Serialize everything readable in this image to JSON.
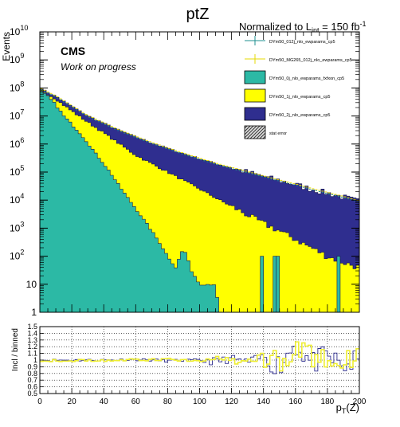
{
  "title": "ptZ",
  "lumi_label": "Normalized to L",
  "lumi_sub": "int",
  "lumi_value": " = 150 fb",
  "lumi_sup": "-1",
  "cms_label": "CMS",
  "cms_sub": "Work on progress",
  "colors": {
    "teal": "#2cb9a5",
    "yellow": "#ffff00",
    "navy": "#2f2e8f",
    "tealmark": "#1f8f8f",
    "yellowmark": "#e6d800",
    "ratioyellow": "#eeee33"
  },
  "chart_data": [
    {
      "type": "area",
      "title": "ptZ",
      "xlabel": "",
      "ylabel": "Events",
      "ylog": true,
      "xlim": [
        0,
        200
      ],
      "ylim": [
        1,
        10000000000
      ],
      "ytick_labels": [
        "1",
        "10",
        "10",
        "10",
        "10",
        "10",
        "10",
        "10",
        "10",
        "10",
        "10"
      ],
      "ytick_exps": [
        "",
        "",
        "2",
        "3",
        "4",
        "5",
        "6",
        "7",
        "8",
        "9",
        "10"
      ],
      "legend_position": "top-right",
      "legend": [
        {
          "name": "DYm50_012j_nlo_ewparams_cp5",
          "style": "marker-teal"
        },
        {
          "name": "DYm50_MG265_012j_nlo_ewparams_cp5",
          "style": "marker-yellow"
        },
        {
          "name": "DYm50_0j_nlo_ewparams_fxfxon_cp5",
          "style": "fill-teal"
        },
        {
          "name": "DYm50_1j_nlo_ewparams_cp5",
          "style": "fill-yellow"
        },
        {
          "name": "DYm50_2j_nlo_ewparams_cp5",
          "style": "fill-navy"
        },
        {
          "name": "stat error",
          "style": "hatch"
        }
      ],
      "series": [
        {
          "name": "DYm50_0j_nlo_ewparams_fxfxon_cp5",
          "y_at_x": [
            [
              0,
              80000000
            ],
            [
              5,
              50000000
            ],
            [
              10,
              25000000
            ],
            [
              15,
              10000000
            ],
            [
              20,
              5000000
            ],
            [
              25,
              2500000
            ],
            [
              30,
              1100000
            ],
            [
              35,
              450000
            ],
            [
              40,
              200000
            ],
            [
              45,
              80000
            ],
            [
              50,
              30000
            ],
            [
              55,
              12000
            ],
            [
              60,
              5000
            ],
            [
              65,
              2000
            ],
            [
              70,
              800
            ],
            [
              75,
              300
            ],
            [
              80,
              100
            ],
            [
              85,
              40
            ],
            [
              90,
              200
            ],
            [
              95,
              30
            ],
            [
              100,
              10
            ],
            [
              105,
              10
            ],
            [
              110,
              10
            ],
            [
              112,
              1
            ]
          ]
        },
        {
          "name": "DYm50_1j_nlo_ewparams_cp5",
          "y_at_x": [
            [
              0,
              90000000
            ],
            [
              10,
              40000000
            ],
            [
              20,
              15000000
            ],
            [
              30,
              6000000
            ],
            [
              40,
              2500000
            ],
            [
              50,
              1000000
            ],
            [
              60,
              400000
            ],
            [
              70,
              200000
            ],
            [
              80,
              100000
            ],
            [
              90,
              50000
            ],
            [
              100,
              25000
            ],
            [
              110,
              12000
            ],
            [
              120,
              6000
            ],
            [
              130,
              3000
            ],
            [
              140,
              1500
            ],
            [
              150,
              800
            ],
            [
              160,
              400
            ],
            [
              170,
              200
            ],
            [
              180,
              100
            ],
            [
              190,
              60
            ],
            [
              200,
              40
            ]
          ]
        },
        {
          "name": "DYm50_2j_nlo_ewparams_cp5",
          "y_at_x": [
            [
              0,
              95000000
            ],
            [
              10,
              50000000
            ],
            [
              20,
              22000000
            ],
            [
              30,
              10000000
            ],
            [
              40,
              5500000
            ],
            [
              50,
              3000000
            ],
            [
              60,
              1800000
            ],
            [
              70,
              1100000
            ],
            [
              80,
              700000
            ],
            [
              90,
              450000
            ],
            [
              100,
              300000
            ],
            [
              110,
              200000
            ],
            [
              120,
              140000
            ],
            [
              130,
              100000
            ],
            [
              140,
              70000
            ],
            [
              150,
              50000
            ],
            [
              160,
              36000
            ],
            [
              170,
              25000
            ],
            [
              180,
              18000
            ],
            [
              190,
              13000
            ],
            [
              200,
              9000
            ]
          ]
        }
      ]
    },
    {
      "type": "line",
      "title": "",
      "xlabel": "p",
      "xlabel_sub": "T",
      "xlabel_suffix": "(Z)",
      "ylabel": "Incl / binned",
      "xlim": [
        0,
        200
      ],
      "ylim": [
        0.5,
        1.5
      ],
      "xticks": [
        0,
        20,
        40,
        60,
        80,
        100,
        120,
        140,
        160,
        180,
        200
      ],
      "yticks": [
        0.5,
        0.6,
        0.7,
        0.8,
        0.9,
        1,
        1.1,
        1.2,
        1.3,
        1.4,
        1.5
      ],
      "grid": true,
      "series": [
        {
          "name": "DYm50_012j_nlo_ewparams_cp5",
          "y_at_x": [
            [
              0,
              1
            ],
            [
              20,
              1
            ],
            [
              40,
              1
            ],
            [
              60,
              1.01
            ],
            [
              80,
              0.99
            ],
            [
              100,
              1.0
            ],
            [
              110,
              0.98
            ],
            [
              120,
              1.02
            ],
            [
              130,
              0.97
            ],
            [
              140,
              1.05
            ],
            [
              150,
              0.92
            ],
            [
              160,
              1.25
            ],
            [
              165,
              1.1
            ],
            [
              170,
              0.95
            ],
            [
              180,
              1.05
            ],
            [
              190,
              0.9
            ],
            [
              200,
              1.0
            ]
          ]
        },
        {
          "name": "DYm50_MG265_012j_nlo_ewparams_cp5",
          "y_at_x": [
            [
              0,
              1
            ],
            [
              20,
              0.99
            ],
            [
              40,
              1.0
            ],
            [
              60,
              1.0
            ],
            [
              80,
              1.01
            ],
            [
              100,
              0.99
            ],
            [
              120,
              1.0
            ],
            [
              130,
              0.96
            ],
            [
              140,
              1.08
            ],
            [
              150,
              0.95
            ],
            [
              160,
              1.1
            ],
            [
              165,
              1.3
            ],
            [
              170,
              1.05
            ],
            [
              180,
              0.95
            ],
            [
              190,
              1.0
            ],
            [
              200,
              1.0
            ]
          ]
        }
      ]
    }
  ]
}
